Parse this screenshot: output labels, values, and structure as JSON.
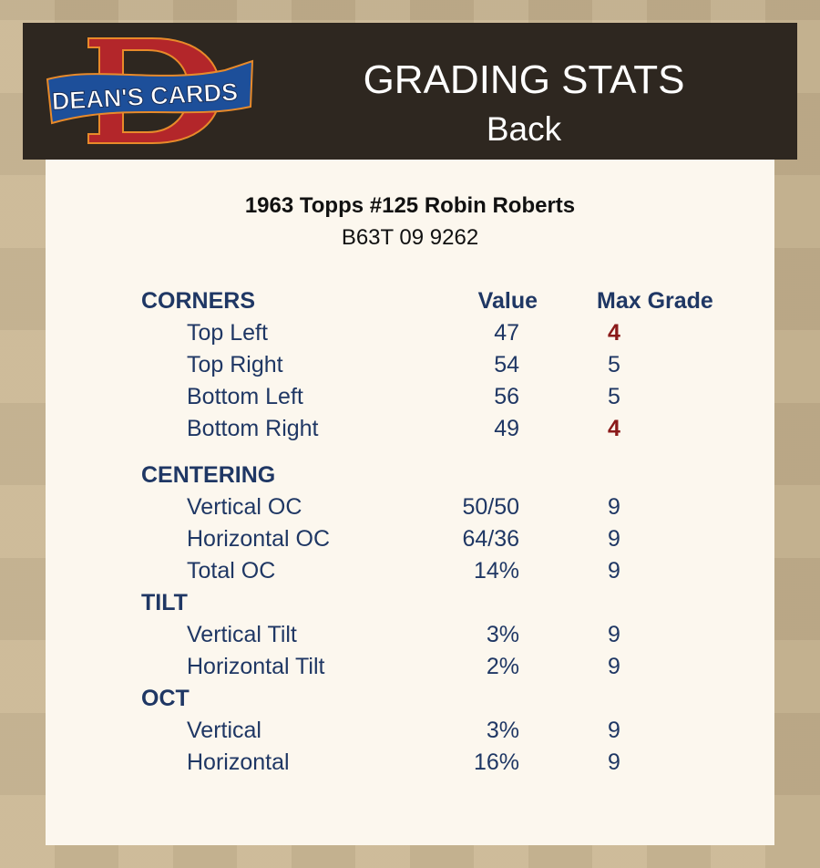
{
  "header": {
    "logo_text": "DEAN'S CARDS",
    "title": "GRADING STATS",
    "subtitle": "Back"
  },
  "card": {
    "name": "1963 Topps #125 Robin Roberts",
    "cert": "B63T 09 9262"
  },
  "columns": {
    "value": "Value",
    "max_grade": "Max Grade"
  },
  "colors": {
    "text": "#1f3764",
    "low_grade": "#8b1a1a",
    "header_bg": "#2e2720",
    "card_bg": "#fcf7ee"
  },
  "sections": [
    {
      "title": "CORNERS",
      "show_columns": true,
      "rows": [
        {
          "label": "Top Left",
          "value": "47",
          "max": "4",
          "low": true
        },
        {
          "label": "Top Right",
          "value": "54",
          "max": "5",
          "low": false
        },
        {
          "label": "Bottom Left",
          "value": "56",
          "max": "5",
          "low": false
        },
        {
          "label": "Bottom Right",
          "value": "49",
          "max": "4",
          "low": true
        }
      ]
    },
    {
      "title": "CENTERING",
      "rows": [
        {
          "label": "Vertical OC",
          "value": "50/50",
          "max": "9",
          "low": false
        },
        {
          "label": "Horizontal OC",
          "value": "64/36",
          "max": "9",
          "low": false
        },
        {
          "label": "Total OC",
          "value": "14%",
          "max": "9",
          "low": false
        }
      ]
    },
    {
      "title": "TILT",
      "rows": [
        {
          "label": "Vertical Tilt",
          "value": "3%",
          "max": "9",
          "low": false
        },
        {
          "label": "Horizontal Tilt",
          "value": "2%",
          "max": "9",
          "low": false
        }
      ]
    },
    {
      "title": "OCT",
      "rows": [
        {
          "label": "Vertical",
          "value": "3%",
          "max": "9",
          "low": false
        },
        {
          "label": "Horizontal",
          "value": "16%",
          "max": "9",
          "low": false
        }
      ]
    }
  ]
}
